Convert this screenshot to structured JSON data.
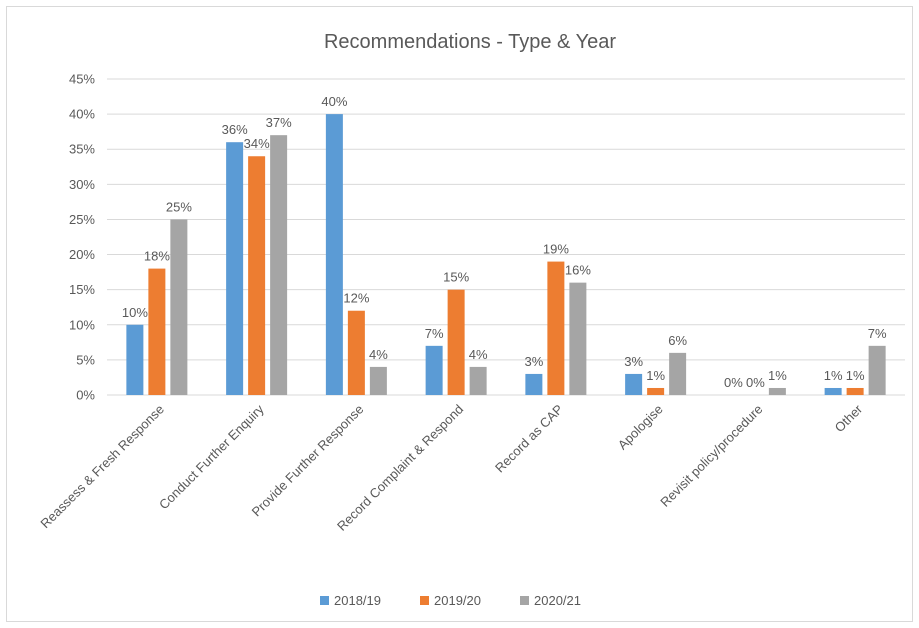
{
  "chart_data": {
    "type": "bar",
    "title": "Recommendations - Type & Year",
    "xlabel": "",
    "ylabel": "",
    "ylim": [
      0,
      45
    ],
    "y_ticks": [
      "0%",
      "5%",
      "10%",
      "15%",
      "20%",
      "25%",
      "30%",
      "35%",
      "40%",
      "45%"
    ],
    "grid": true,
    "legend_position": "bottom",
    "categories": [
      "Reassess & Fresh Response",
      "Conduct Further Enquiry",
      "Provide Further Response",
      "Record Complaint & Respond",
      "Record as CAP",
      "Apologise",
      "Revisit policy/procedure",
      "Other"
    ],
    "series": [
      {
        "name": "2018/19",
        "color": "#5b9bd5",
        "values": [
          10,
          36,
          40,
          7,
          3,
          3,
          0,
          1
        ],
        "labels": [
          "10%",
          "36%",
          "40%",
          "7%",
          "3%",
          "3%",
          "0%",
          "1%"
        ]
      },
      {
        "name": "2019/20",
        "color": "#ed7d31",
        "values": [
          18,
          34,
          12,
          15,
          19,
          1,
          0,
          1
        ],
        "labels": [
          "18%",
          "34%",
          "12%",
          "15%",
          "19%",
          "1%",
          "0%",
          "1%"
        ]
      },
      {
        "name": "2020/21",
        "color": "#a5a5a5",
        "values": [
          25,
          37,
          4,
          4,
          16,
          6,
          1,
          7
        ],
        "labels": [
          "25%",
          "37%",
          "4%",
          "4%",
          "16%",
          "6%",
          "1%",
          "7%"
        ]
      }
    ]
  }
}
